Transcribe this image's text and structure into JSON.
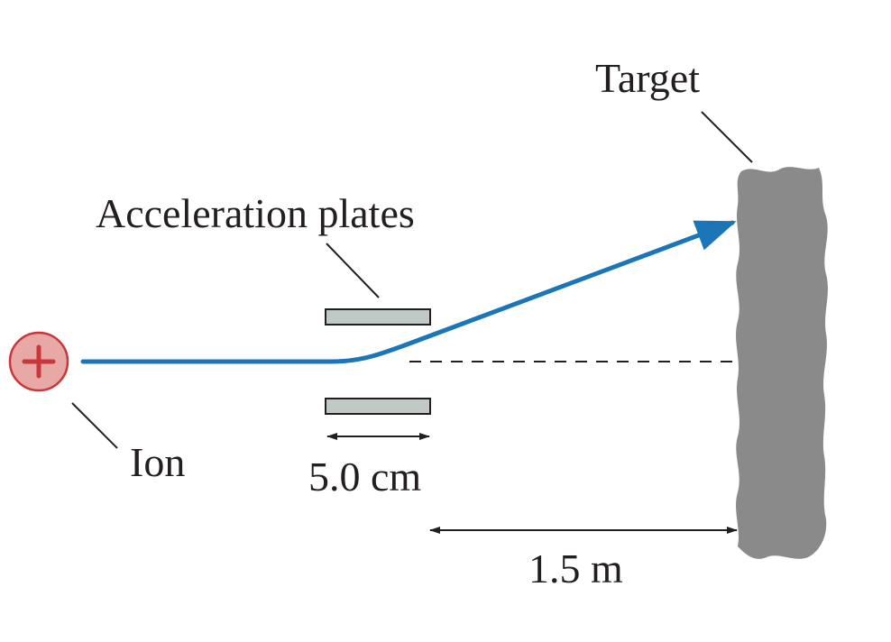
{
  "labels": {
    "target": "Target",
    "plates": "Acceleration plates",
    "ion": "Ion",
    "plate_length": "5.0 cm",
    "distance": "1.5 m"
  },
  "symbols": {
    "ion_charge": "+"
  },
  "icons": {
    "ion": "positive-ion-icon",
    "target": "rough-target-block",
    "arrowhead": "arrowhead"
  },
  "colors": {
    "trajectory": "#1b75b6",
    "ion_fill": "#e8a8a6",
    "ion_stroke": "#c8373b",
    "plate_fill": "#c0c9c4",
    "plate_stroke": "#231f20",
    "target_fill": "#8a8a8a",
    "text": "#231f20"
  }
}
